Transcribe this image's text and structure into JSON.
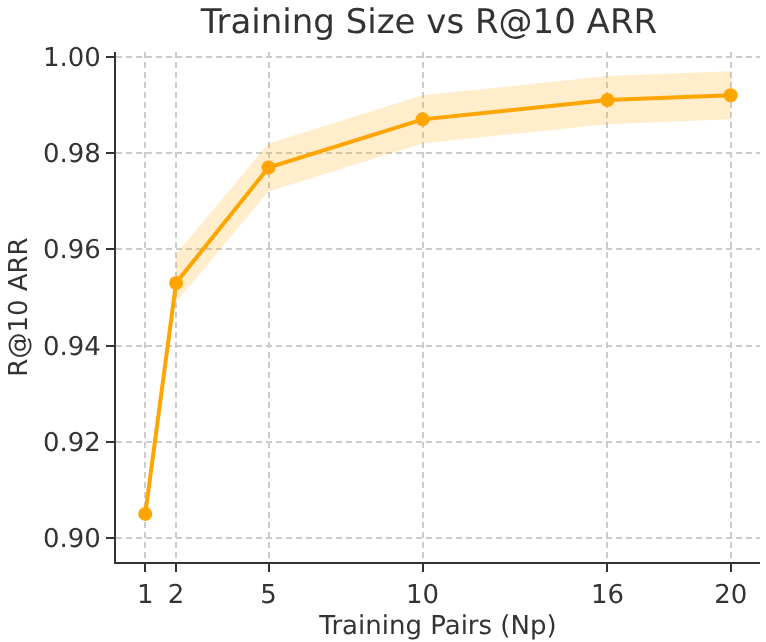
{
  "chart_data": {
    "type": "line",
    "title": "Training Size vs R@10 ARR",
    "xlabel": "Training Pairs (Np)",
    "ylabel": "R@10 ARR",
    "x": [
      1,
      2,
      5,
      10,
      16,
      20
    ],
    "series": [
      {
        "color": "#ffa500",
        "values": [
          0.905,
          0.953,
          0.977,
          0.987,
          0.991,
          0.992
        ],
        "lower": [
          null,
          0.949,
          0.972,
          0.982,
          0.986,
          0.987
        ],
        "upper": [
          null,
          0.959,
          0.982,
          0.992,
          0.996,
          0.997
        ]
      }
    ],
    "xlim": [
      0.05,
      20.95
    ],
    "ylim": [
      0.895,
      1.001
    ],
    "xticks": [
      1,
      2,
      5,
      10,
      16,
      20
    ],
    "yticks": [
      {
        "value": 0.9,
        "label": "0.90"
      },
      {
        "value": 0.92,
        "label": "0.92"
      },
      {
        "value": 0.94,
        "label": "0.94"
      },
      {
        "value": 0.96,
        "label": "0.96"
      },
      {
        "value": 0.98,
        "label": "0.98"
      },
      {
        "value": 1.0,
        "label": "1.00"
      }
    ],
    "grid": true,
    "marker": "circle",
    "line_style": "solid"
  }
}
